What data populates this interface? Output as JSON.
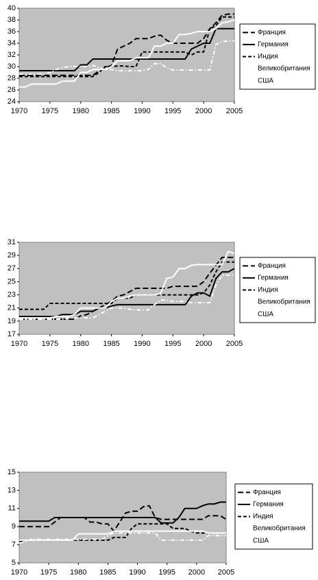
{
  "chart_data": [
    {
      "type": "line",
      "x": [
        1970,
        1971,
        1972,
        1973,
        1974,
        1975,
        1976,
        1977,
        1978,
        1979,
        1980,
        1981,
        1982,
        1983,
        1984,
        1985,
        1986,
        1987,
        1988,
        1989,
        1990,
        1991,
        1992,
        1993,
        1994,
        1995,
        1996,
        1997,
        1998,
        1999,
        2000,
        2001,
        2002,
        2003,
        2004,
        2005
      ],
      "xlim": [
        1970,
        2005
      ],
      "xticks": [
        1970,
        1975,
        1980,
        1985,
        1990,
        1995,
        2000,
        2005
      ],
      "ylim": [
        24,
        40
      ],
      "yticks": [
        24,
        26,
        28,
        30,
        32,
        34,
        36,
        38,
        40
      ],
      "background": "#c0c0c0",
      "series": [
        {
          "name": "Франция",
          "color": "#000000",
          "style": "dashed",
          "values": [
            28.5,
            28.5,
            28.5,
            28.5,
            28.5,
            28.5,
            28.5,
            28.5,
            28.5,
            28.5,
            28.5,
            28.5,
            28.5,
            29.3,
            29.8,
            30.2,
            33,
            33.5,
            34,
            34.8,
            34.8,
            34.8,
            35.2,
            35.4,
            34.5,
            34,
            34,
            34,
            34,
            34,
            34.8,
            36.5,
            37.5,
            38.8,
            39,
            39
          ]
        },
        {
          "name": "Германия",
          "color": "#000000",
          "style": "solid",
          "values": [
            29.3,
            29.3,
            29.3,
            29.3,
            29.3,
            29.3,
            29.3,
            29.3,
            29.3,
            29.3,
            30.3,
            30.3,
            31.3,
            31.3,
            31.3,
            31.3,
            31.3,
            31.3,
            31.3,
            31.3,
            31.3,
            31.3,
            31.3,
            31.3,
            31.3,
            31.3,
            31.3,
            31.3,
            33,
            33.5,
            34,
            34,
            36.5,
            36.5,
            36.5,
            36.5
          ]
        },
        {
          "name": "Индия",
          "color": "#000000",
          "style": "dash",
          "values": [
            28.3,
            28.3,
            28.3,
            28.3,
            28.3,
            28.3,
            28.3,
            28.3,
            28.3,
            28.3,
            28.3,
            28.3,
            28.3,
            29,
            30,
            30,
            30.1,
            30.1,
            30,
            30,
            32.5,
            32.5,
            32.5,
            32.5,
            32.5,
            32.5,
            32.5,
            32.5,
            32,
            32.5,
            32.5,
            36.5,
            37,
            38.5,
            38.5,
            38.5
          ]
        },
        {
          "name": "Великобритания",
          "color": "#ffffff",
          "style": "solid",
          "values": [
            26.5,
            26.5,
            27,
            27,
            27,
            27,
            27,
            27.5,
            27.5,
            27.5,
            29,
            29,
            29.5,
            29.5,
            29.5,
            30,
            31,
            31,
            31,
            31.5,
            31.5,
            31.5,
            33.5,
            33.5,
            34,
            34,
            35.5,
            35.5,
            35.7,
            36,
            36,
            36,
            36.5,
            37.5,
            37.7,
            38
          ]
        },
        {
          "name": "США",
          "color": "#ffffff",
          "style": "dash-dot",
          "values": [
            28.7,
            28.7,
            28.7,
            28.7,
            28.7,
            29,
            29.5,
            29.8,
            30,
            30,
            30,
            30,
            30.2,
            29.8,
            29.5,
            29.5,
            29.3,
            29.3,
            29.3,
            29.3,
            29.3,
            29.5,
            30.5,
            30.5,
            29.8,
            29.4,
            29.4,
            29.4,
            29.4,
            29.4,
            29.4,
            29.4,
            33.8,
            34.3,
            34.4,
            34.4
          ]
        }
      ]
    },
    {
      "type": "line",
      "x": [
        1970,
        1971,
        1972,
        1973,
        1974,
        1975,
        1976,
        1977,
        1978,
        1979,
        1980,
        1981,
        1982,
        1983,
        1984,
        1985,
        1986,
        1987,
        1988,
        1989,
        1990,
        1991,
        1992,
        1993,
        1994,
        1995,
        1996,
        1997,
        1998,
        1999,
        2000,
        2001,
        2002,
        2003,
        2004,
        2005
      ],
      "xlim": [
        1970,
        2005
      ],
      "xticks": [
        1970,
        1975,
        1980,
        1985,
        1990,
        1995,
        2000,
        2005
      ],
      "ylim": [
        17,
        31
      ],
      "yticks": [
        17,
        19,
        21,
        23,
        25,
        27,
        29,
        31
      ],
      "background": "#c0c0c0",
      "series": [
        {
          "name": "Франция",
          "color": "#000000",
          "style": "dashed",
          "values": [
            19.3,
            19.3,
            19.3,
            19.3,
            19.3,
            19.3,
            19.3,
            19.3,
            19.3,
            19.3,
            19.8,
            20,
            20.5,
            21,
            21.5,
            22,
            22.8,
            23,
            23.5,
            24,
            24,
            24,
            24,
            24,
            24,
            24.3,
            24.3,
            24.3,
            24.3,
            24.3,
            25,
            26.3,
            27.5,
            28.7,
            28.7,
            28.7
          ]
        },
        {
          "name": "Германия",
          "color": "#000000",
          "style": "solid",
          "values": [
            19.7,
            19.7,
            19.7,
            19.7,
            19.7,
            19.7,
            19.7,
            20,
            20,
            20,
            20.5,
            20.5,
            20.5,
            21,
            21,
            21.3,
            21.5,
            21.5,
            21.5,
            21.5,
            21.5,
            21.5,
            21.5,
            21.5,
            21.5,
            21.5,
            21.5,
            21.5,
            22.8,
            23.3,
            23.3,
            22.8,
            25.5,
            26.5,
            26.5,
            27
          ]
        },
        {
          "name": "Индия",
          "color": "#000000",
          "style": "dash",
          "values": [
            20.8,
            20.8,
            20.8,
            20.8,
            20.8,
            21.7,
            21.7,
            21.7,
            21.7,
            21.7,
            21.7,
            21.7,
            21.7,
            21.7,
            21.7,
            21.7,
            22.5,
            22.5,
            22.5,
            23,
            23,
            23,
            23,
            23,
            23,
            23,
            23,
            23,
            23,
            23,
            23.3,
            24.5,
            26.5,
            28,
            28,
            28
          ]
        },
        {
          "name": "Великобритания",
          "color": "#ffffff",
          "style": "solid",
          "values": [
            19.5,
            19.5,
            19.5,
            19.5,
            19.5,
            19.5,
            19.7,
            19.7,
            19.7,
            20,
            21,
            21,
            21,
            21,
            21,
            22,
            22.5,
            22.5,
            22.8,
            23,
            23,
            23,
            23,
            23.2,
            25.5,
            25.7,
            27,
            27,
            27.5,
            27.6,
            27.6,
            27.6,
            27.6,
            27.6,
            29.6,
            29.3
          ]
        },
        {
          "name": "США",
          "color": "#ffffff",
          "style": "dash-dot",
          "values": [
            19.3,
            19.3,
            19.3,
            19.3,
            19.3,
            19.3,
            19.3,
            19.3,
            19.5,
            19.5,
            19.5,
            19.5,
            19.5,
            20,
            20.5,
            21,
            21,
            21,
            20.8,
            20.7,
            20.7,
            20.7,
            21.5,
            22.2,
            22.2,
            22,
            22,
            22,
            21.8,
            21.8,
            21.8,
            21.8,
            24.5,
            26,
            26,
            26
          ]
        }
      ]
    },
    {
      "type": "line",
      "x": [
        1970,
        1971,
        1972,
        1973,
        1974,
        1975,
        1976,
        1977,
        1978,
        1979,
        1980,
        1981,
        1982,
        1983,
        1984,
        1985,
        1986,
        1987,
        1988,
        1989,
        1990,
        1991,
        1992,
        1993,
        1994,
        1995,
        1996,
        1997,
        1998,
        1999,
        2000,
        2001,
        2002,
        2003,
        2004,
        2005
      ],
      "xlim": [
        1970,
        2005
      ],
      "xticks": [
        1970,
        1975,
        1980,
        1985,
        1990,
        1995,
        2000,
        2005
      ],
      "ylim": [
        5,
        15
      ],
      "yticks": [
        5,
        7,
        9,
        11,
        13,
        15
      ],
      "background": "#c0c0c0",
      "series": [
        {
          "name": "Франция",
          "color": "#000000",
          "style": "dashed",
          "values": [
            9,
            9,
            9,
            9,
            9,
            9,
            9.5,
            10,
            10,
            10,
            10,
            10,
            9.5,
            9.5,
            9.3,
            9.3,
            8.5,
            9.5,
            10.5,
            10.7,
            10.7,
            11.2,
            11.3,
            10,
            9.8,
            9.8,
            9.8,
            9.8,
            9.8,
            9.8,
            9.8,
            9.8,
            10.2,
            10.2,
            10.2,
            9.8
          ]
        },
        {
          "name": "Германия",
          "color": "#000000",
          "style": "solid",
          "values": [
            9.6,
            9.6,
            9.6,
            9.6,
            9.6,
            9.6,
            10,
            10,
            10,
            10,
            10,
            10,
            10,
            10,
            10,
            10,
            10,
            10,
            10,
            10,
            10,
            10,
            10,
            10,
            9.4,
            9.4,
            9.4,
            10,
            11,
            11,
            11,
            11.3,
            11.5,
            11.5,
            11.7,
            11.7
          ]
        },
        {
          "name": "Индия",
          "color": "#000000",
          "style": "dash",
          "values": [
            7.3,
            7.5,
            7.5,
            7.5,
            7.5,
            7.5,
            7.5,
            7.5,
            7.5,
            7.5,
            7.5,
            7.5,
            7.5,
            7.5,
            7.5,
            7.5,
            7.8,
            7.8,
            7.8,
            8.8,
            9.3,
            9.3,
            9.3,
            9.3,
            9.3,
            9.3,
            8.8,
            8.8,
            8.8,
            8.5,
            8.3,
            8.3,
            8.3,
            8.3,
            8.3,
            8.3
          ]
        },
        {
          "name": "Великобритания",
          "color": "#ffffff",
          "style": "solid",
          "values": [
            7.5,
            7.5,
            7.5,
            7.5,
            7.5,
            7.5,
            7.5,
            7.5,
            7.5,
            7.5,
            8.2,
            8.2,
            8.2,
            8.2,
            8.2,
            8.2,
            8.5,
            8.5,
            8.5,
            8.5,
            8.5,
            8.5,
            8.5,
            8.5,
            8.5,
            8.5,
            8.5,
            8.5,
            8.5,
            8.5,
            8.5,
            8.5,
            8.3,
            8.3,
            8.3,
            8.3
          ]
        },
        {
          "name": "США",
          "color": "#ffffff",
          "style": "dash-dot",
          "values": [
            7.2,
            7.3,
            7.6,
            7.6,
            7.6,
            7.6,
            7.6,
            7.6,
            7.6,
            7.6,
            7.6,
            7.6,
            7.6,
            7.6,
            7.6,
            8,
            8.3,
            8.3,
            8.3,
            8.3,
            8.3,
            8.3,
            8.3,
            8.3,
            7.5,
            7.5,
            7.5,
            7.5,
            7.5,
            7.5,
            7.5,
            7.5,
            8,
            8,
            8,
            8
          ]
        }
      ]
    }
  ]
}
